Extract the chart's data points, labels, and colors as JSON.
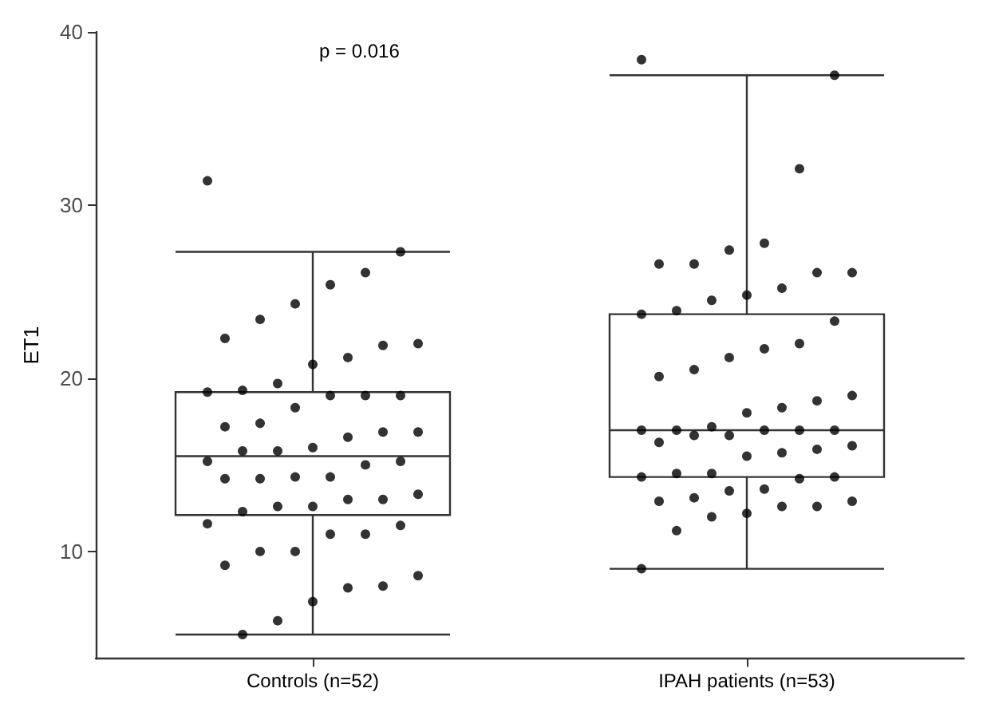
{
  "chart_data": {
    "type": "box",
    "ylabel": "ET1",
    "annotations": [
      "p = 0.016"
    ],
    "categories": [
      "Controls (n=52)",
      "IPAH patients (n=53)"
    ],
    "boxes": [
      {
        "low": 5.2,
        "q1": 12.1,
        "median": 15.5,
        "q3": 19.2,
        "high": 27.3
      },
      {
        "low": 9.0,
        "q1": 14.3,
        "median": 17.0,
        "q3": 23.7,
        "high": 37.5
      }
    ],
    "ylim": [
      3.8,
      40
    ],
    "yticks": [
      10,
      20,
      30,
      40
    ],
    "grid": false,
    "series": [
      {
        "type": "scatter",
        "color": "#000000",
        "marker": "circle",
        "x": [
          "Controls (n=52)",
          "Controls (n=52)",
          "Controls (n=52)",
          "Controls (n=52)",
          "Controls (n=52)",
          "Controls (n=52)",
          "Controls (n=52)",
          "Controls (n=52)",
          "Controls (n=52)",
          "Controls (n=52)",
          "Controls (n=52)",
          "Controls (n=52)",
          "Controls (n=52)",
          "Controls (n=52)",
          "Controls (n=52)",
          "Controls (n=52)",
          "Controls (n=52)",
          "Controls (n=52)",
          "Controls (n=52)",
          "Controls (n=52)",
          "Controls (n=52)",
          "Controls (n=52)",
          "Controls (n=52)",
          "Controls (n=52)",
          "Controls (n=52)",
          "Controls (n=52)",
          "Controls (n=52)",
          "Controls (n=52)",
          "Controls (n=52)",
          "Controls (n=52)",
          "Controls (n=52)",
          "Controls (n=52)",
          "Controls (n=52)",
          "Controls (n=52)",
          "Controls (n=52)",
          "Controls (n=52)",
          "Controls (n=52)",
          "Controls (n=52)",
          "Controls (n=52)",
          "Controls (n=52)",
          "Controls (n=52)",
          "Controls (n=52)",
          "Controls (n=52)",
          "Controls (n=52)",
          "Controls (n=52)",
          "Controls (n=52)",
          "Controls (n=52)",
          "Controls (n=52)",
          "Controls (n=52)",
          "Controls (n=52)",
          "Controls (n=52)",
          "Controls (n=52)",
          "IPAH patients (n=53)",
          "IPAH patients (n=53)",
          "IPAH patients (n=53)",
          "IPAH patients (n=53)",
          "IPAH patients (n=53)",
          "IPAH patients (n=53)",
          "IPAH patients (n=53)",
          "IPAH patients (n=53)",
          "IPAH patients (n=53)",
          "IPAH patients (n=53)",
          "IPAH patients (n=53)",
          "IPAH patients (n=53)",
          "IPAH patients (n=53)",
          "IPAH patients (n=53)",
          "IPAH patients (n=53)",
          "IPAH patients (n=53)",
          "IPAH patients (n=53)",
          "IPAH patients (n=53)",
          "IPAH patients (n=53)",
          "IPAH patients (n=53)",
          "IPAH patients (n=53)",
          "IPAH patients (n=53)",
          "IPAH patients (n=53)",
          "IPAH patients (n=53)",
          "IPAH patients (n=53)",
          "IPAH patients (n=53)",
          "IPAH patients (n=53)",
          "IPAH patients (n=53)",
          "IPAH patients (n=53)",
          "IPAH patients (n=53)",
          "IPAH patients (n=53)",
          "IPAH patients (n=53)",
          "IPAH patients (n=53)",
          "IPAH patients (n=53)",
          "IPAH patients (n=53)",
          "IPAH patients (n=53)",
          "IPAH patients (n=53)",
          "IPAH patients (n=53)",
          "IPAH patients (n=53)",
          "IPAH patients (n=53)",
          "IPAH patients (n=53)",
          "IPAH patients (n=53)",
          "IPAH patients (n=53)",
          "IPAH patients (n=53)",
          "IPAH patients (n=53)",
          "IPAH patients (n=53)",
          "IPAH patients (n=53)",
          "IPAH patients (n=53)",
          "IPAH patients (n=53)",
          "IPAH patients (n=53)",
          "IPAH patients (n=53)",
          "IPAH patients (n=53)",
          "IPAH patients (n=53)"
        ],
        "values": [
          31.4,
          27.3,
          26.1,
          25.4,
          24.3,
          23.4,
          22.3,
          22.0,
          21.9,
          21.2,
          20.8,
          19.7,
          19.3,
          19.2,
          19.0,
          19.0,
          19.0,
          18.3,
          17.4,
          17.2,
          16.9,
          16.9,
          16.6,
          16.0,
          15.8,
          15.8,
          15.2,
          15.2,
          15.0,
          14.3,
          14.3,
          14.2,
          14.2,
          13.3,
          13.0,
          13.0,
          12.6,
          12.6,
          12.3,
          11.6,
          11.5,
          11.0,
          11.0,
          10.0,
          10.0,
          9.2,
          8.6,
          8.0,
          7.9,
          7.1,
          6.0,
          5.2,
          38.4,
          37.5,
          32.1,
          27.8,
          27.4,
          26.6,
          26.6,
          26.1,
          26.1,
          25.2,
          24.8,
          24.5,
          23.9,
          23.7,
          23.3,
          22.0,
          21.7,
          21.2,
          20.5,
          20.1,
          19.0,
          18.7,
          18.3,
          18.0,
          17.2,
          17.0,
          17.0,
          17.0,
          17.0,
          17.0,
          16.7,
          16.7,
          16.3,
          16.1,
          15.9,
          15.7,
          15.5,
          14.5,
          14.5,
          14.3,
          14.3,
          14.2,
          13.6,
          13.5,
          13.1,
          12.9,
          12.9,
          12.6,
          12.6,
          12.2,
          12.0,
          11.2,
          9.0
        ]
      }
    ]
  }
}
